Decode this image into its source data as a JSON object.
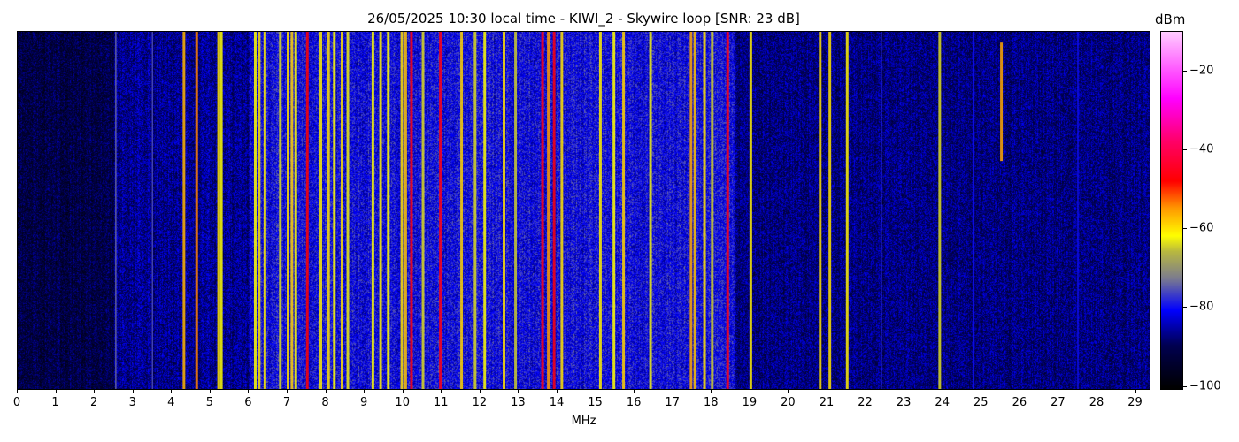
{
  "chart_data": {
    "type": "heatmap",
    "title": "26/05/2025 10:30 local time - KIWI_2 - Skywire loop [SNR: 23 dB]",
    "xlabel": "MHz",
    "xlim": [
      0,
      29.4
    ],
    "xticks": [
      0,
      1,
      2,
      3,
      4,
      5,
      6,
      7,
      8,
      9,
      10,
      11,
      12,
      13,
      14,
      15,
      16,
      17,
      18,
      19,
      20,
      21,
      22,
      23,
      24,
      25,
      26,
      27,
      28,
      29
    ],
    "colorbar": {
      "label": "dBm",
      "range": [
        -101,
        -10
      ],
      "ticks": [
        -20,
        -40,
        -60,
        -80,
        -100
      ],
      "colormap": [
        {
          "v": -101,
          "c": "#000000"
        },
        {
          "v": -90,
          "c": "#000050"
        },
        {
          "v": -81,
          "c": "#0000ff"
        },
        {
          "v": -73,
          "c": "#7a7a90"
        },
        {
          "v": -66,
          "c": "#b8b840"
        },
        {
          "v": -62,
          "c": "#ffff00"
        },
        {
          "v": -55,
          "c": "#ff9900"
        },
        {
          "v": -48,
          "c": "#ff0000"
        },
        {
          "v": -38,
          "c": "#ff0066"
        },
        {
          "v": -27,
          "c": "#ff00ff"
        },
        {
          "v": -10,
          "c": "#ffccff"
        }
      ]
    },
    "noise_floor": [
      {
        "from": 0,
        "to": 2.5,
        "dbm": -92
      },
      {
        "from": 2.5,
        "to": 6.0,
        "dbm": -87
      },
      {
        "from": 6.0,
        "to": 18.6,
        "dbm": -81
      },
      {
        "from": 18.6,
        "to": 29.4,
        "dbm": -88
      }
    ],
    "signals": [
      {
        "mhz": 2.55,
        "dbm": -74
      },
      {
        "mhz": 3.5,
        "dbm": -76
      },
      {
        "mhz": 4.3,
        "dbm": -57
      },
      {
        "mhz": 4.63,
        "dbm": -54
      },
      {
        "mhz": 5.2,
        "dbm": -60
      },
      {
        "mhz": 5.27,
        "dbm": -62
      },
      {
        "mhz": 6.15,
        "dbm": -62
      },
      {
        "mhz": 6.25,
        "dbm": -60
      },
      {
        "mhz": 6.4,
        "dbm": -61
      },
      {
        "mhz": 6.8,
        "dbm": -64
      },
      {
        "mhz": 7.0,
        "dbm": -60
      },
      {
        "mhz": 7.1,
        "dbm": -59
      },
      {
        "mhz": 7.2,
        "dbm": -62
      },
      {
        "mhz": 7.5,
        "dbm": -48
      },
      {
        "mhz": 7.85,
        "dbm": -61
      },
      {
        "mhz": 8.05,
        "dbm": -60
      },
      {
        "mhz": 8.2,
        "dbm": -62
      },
      {
        "mhz": 8.4,
        "dbm": -60
      },
      {
        "mhz": 8.55,
        "dbm": -63
      },
      {
        "mhz": 9.2,
        "dbm": -62
      },
      {
        "mhz": 9.4,
        "dbm": -61
      },
      {
        "mhz": 9.6,
        "dbm": -62
      },
      {
        "mhz": 9.95,
        "dbm": -60
      },
      {
        "mhz": 10.05,
        "dbm": -58
      },
      {
        "mhz": 10.2,
        "dbm": -47
      },
      {
        "mhz": 10.5,
        "dbm": -64
      },
      {
        "mhz": 10.95,
        "dbm": -46
      },
      {
        "mhz": 11.5,
        "dbm": -59
      },
      {
        "mhz": 11.85,
        "dbm": -64
      },
      {
        "mhz": 12.1,
        "dbm": -62
      },
      {
        "mhz": 12.6,
        "dbm": -60
      },
      {
        "mhz": 12.9,
        "dbm": -65
      },
      {
        "mhz": 13.6,
        "dbm": -46
      },
      {
        "mhz": 13.75,
        "dbm": -55
      },
      {
        "mhz": 13.9,
        "dbm": -47
      },
      {
        "mhz": 14.1,
        "dbm": -60
      },
      {
        "mhz": 15.1,
        "dbm": -61
      },
      {
        "mhz": 15.45,
        "dbm": -62
      },
      {
        "mhz": 15.7,
        "dbm": -59
      },
      {
        "mhz": 16.4,
        "dbm": -63
      },
      {
        "mhz": 17.45,
        "dbm": -56
      },
      {
        "mhz": 17.55,
        "dbm": -58
      },
      {
        "mhz": 17.8,
        "dbm": -60
      },
      {
        "mhz": 18.0,
        "dbm": -65
      },
      {
        "mhz": 18.4,
        "dbm": -46
      },
      {
        "mhz": 19.0,
        "dbm": -61
      },
      {
        "mhz": 20.8,
        "dbm": -60
      },
      {
        "mhz": 21.05,
        "dbm": -60
      },
      {
        "mhz": 21.5,
        "dbm": -61
      },
      {
        "mhz": 22.4,
        "dbm": -78
      },
      {
        "mhz": 23.9,
        "dbm": -64
      },
      {
        "mhz": 24.8,
        "dbm": -80
      },
      {
        "mhz": 25.5,
        "dbm": -56,
        "time_span_frac": [
          0.03,
          0.36
        ]
      },
      {
        "mhz": 27.5,
        "dbm": -80
      }
    ]
  }
}
